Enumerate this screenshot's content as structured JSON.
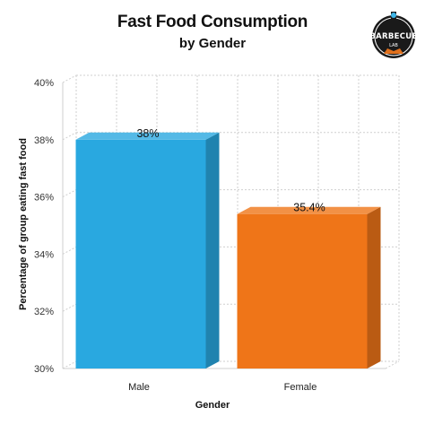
{
  "header": {
    "title": "Fast Food Consumption",
    "subtitle": "by Gender"
  },
  "logo": {
    "text": "BARBECUE",
    "subtext": "LAB"
  },
  "colors": {
    "male": "#29a8e0",
    "female": "#ef7518",
    "grid": "#cfcfcf"
  },
  "chart_data": {
    "type": "bar",
    "title": "Fast Food Consumption",
    "subtitle": "by Gender",
    "xlabel": "Gender",
    "ylabel": "Percentage of group eating fast food",
    "categories": [
      "Male",
      "Female"
    ],
    "values": [
      38,
      35.4
    ],
    "data_labels": [
      "38%",
      "35.4%"
    ],
    "ylim": [
      30,
      40
    ],
    "yticks": [
      "30%",
      "32%",
      "34%",
      "36%",
      "38%",
      "40%"
    ],
    "grid": true,
    "style": "3d"
  }
}
